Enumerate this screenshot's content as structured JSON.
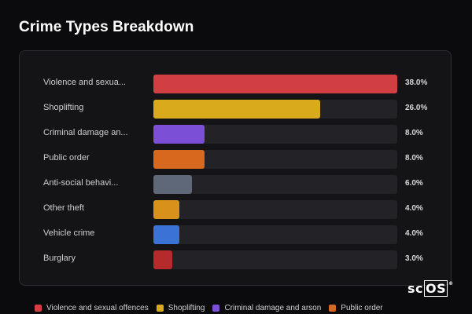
{
  "title": "Crime Types Breakdown",
  "colors": {
    "background": "#0b0b0d",
    "panel": "#141417",
    "track": "#222227"
  },
  "legend_items": [
    {
      "label": "Violence and sexual offences",
      "color": "#d23f43"
    },
    {
      "label": "Shoplifting",
      "color": "#d9ab1c"
    },
    {
      "label": "Criminal damage and arson",
      "color": "#7b4fd6"
    },
    {
      "label": "Public order",
      "color": "#d8681e"
    }
  ],
  "logo": {
    "prefix": "sc",
    "boxed": "OS",
    "mark": "®"
  },
  "chart_data": {
    "type": "bar",
    "orientation": "horizontal",
    "title": "Crime Types Breakdown",
    "xlim": [
      0,
      38
    ],
    "categories": [
      "Violence and sexua...",
      "Shoplifting",
      "Criminal damage an...",
      "Public order",
      "Anti-social behavi...",
      "Other theft",
      "Vehicle crime",
      "Burglary"
    ],
    "values": [
      38.0,
      26.0,
      8.0,
      8.0,
      6.0,
      4.0,
      4.0,
      3.0
    ],
    "value_labels": [
      "38.0%",
      "26.0%",
      "8.0%",
      "8.0%",
      "6.0%",
      "4.0%",
      "4.0%",
      "3.0%"
    ],
    "colors": [
      "#d23f43",
      "#d9ab1c",
      "#7b4fd6",
      "#d8681e",
      "#5f6878",
      "#d8921c",
      "#3a72d6",
      "#b52a2a"
    ]
  }
}
